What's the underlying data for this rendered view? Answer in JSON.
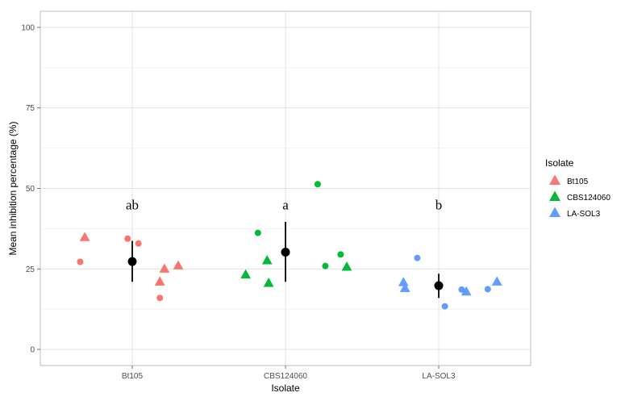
{
  "chart_data": {
    "type": "scatter",
    "xlabel": "Isolate",
    "ylabel": "Mean inhibition percentage (%)",
    "categories": [
      "Bt105",
      "CBS124060",
      "LA-SOL3"
    ],
    "ylim": [
      -5,
      105
    ],
    "yticks": [
      0,
      25,
      50,
      75,
      100
    ],
    "grid": true,
    "legend": {
      "title": "Isolate",
      "placement": "right",
      "entries": [
        {
          "label": "Bt105",
          "color": "#F8766D"
        },
        {
          "label": "CBS124060",
          "color": "#00BA38"
        },
        {
          "label": "LA-SOL3",
          "color": "#619CFF"
        }
      ]
    },
    "series": [
      {
        "category": "Bt105",
        "color": "#F8766D",
        "points": [
          {
            "x": 0.66,
            "y": 27.2,
            "shape": "circle"
          },
          {
            "x": 0.69,
            "y": 34.8,
            "shape": "triangle"
          },
          {
            "x": 0.97,
            "y": 34.4,
            "shape": "circle"
          },
          {
            "x": 1.04,
            "y": 32.9,
            "shape": "circle"
          },
          {
            "x": 1.18,
            "y": 16.0,
            "shape": "circle"
          },
          {
            "x": 1.18,
            "y": 21.0,
            "shape": "triangle"
          },
          {
            "x": 1.21,
            "y": 25.0,
            "shape": "triangle"
          },
          {
            "x": 1.3,
            "y": 26.0,
            "shape": "triangle"
          }
        ]
      },
      {
        "category": "CBS124060",
        "color": "#00BA38",
        "points": [
          {
            "x": 1.74,
            "y": 23.2,
            "shape": "triangle"
          },
          {
            "x": 1.82,
            "y": 36.2,
            "shape": "circle"
          },
          {
            "x": 1.88,
            "y": 27.6,
            "shape": "triangle"
          },
          {
            "x": 1.89,
            "y": 20.6,
            "shape": "triangle"
          },
          {
            "x": 2.21,
            "y": 51.3,
            "shape": "circle"
          },
          {
            "x": 2.26,
            "y": 25.9,
            "shape": "circle"
          },
          {
            "x": 2.36,
            "y": 29.5,
            "shape": "circle"
          },
          {
            "x": 2.4,
            "y": 25.6,
            "shape": "triangle"
          }
        ]
      },
      {
        "category": "LA-SOL3",
        "color": "#619CFF",
        "points": [
          {
            "x": 2.77,
            "y": 20.8,
            "shape": "triangle"
          },
          {
            "x": 2.78,
            "y": 19.0,
            "shape": "triangle"
          },
          {
            "x": 2.86,
            "y": 28.4,
            "shape": "circle"
          },
          {
            "x": 3.04,
            "y": 13.4,
            "shape": "circle"
          },
          {
            "x": 3.15,
            "y": 18.6,
            "shape": "circle"
          },
          {
            "x": 3.18,
            "y": 17.9,
            "shape": "triangle"
          },
          {
            "x": 3.32,
            "y": 18.7,
            "shape": "circle"
          },
          {
            "x": 3.38,
            "y": 21.0,
            "shape": "triangle"
          }
        ]
      }
    ],
    "summary": [
      {
        "category": "Bt105",
        "mean": 27.3,
        "lower": 21.0,
        "upper": 33.7,
        "letter": "ab",
        "letter_y": 45
      },
      {
        "category": "CBS124060",
        "mean": 30.2,
        "lower": 21.0,
        "upper": 39.6,
        "letter": "a",
        "letter_y": 45
      },
      {
        "category": "LA-SOL3",
        "mean": 19.8,
        "lower": 16.0,
        "upper": 23.5,
        "letter": "b",
        "letter_y": 45
      }
    ]
  }
}
